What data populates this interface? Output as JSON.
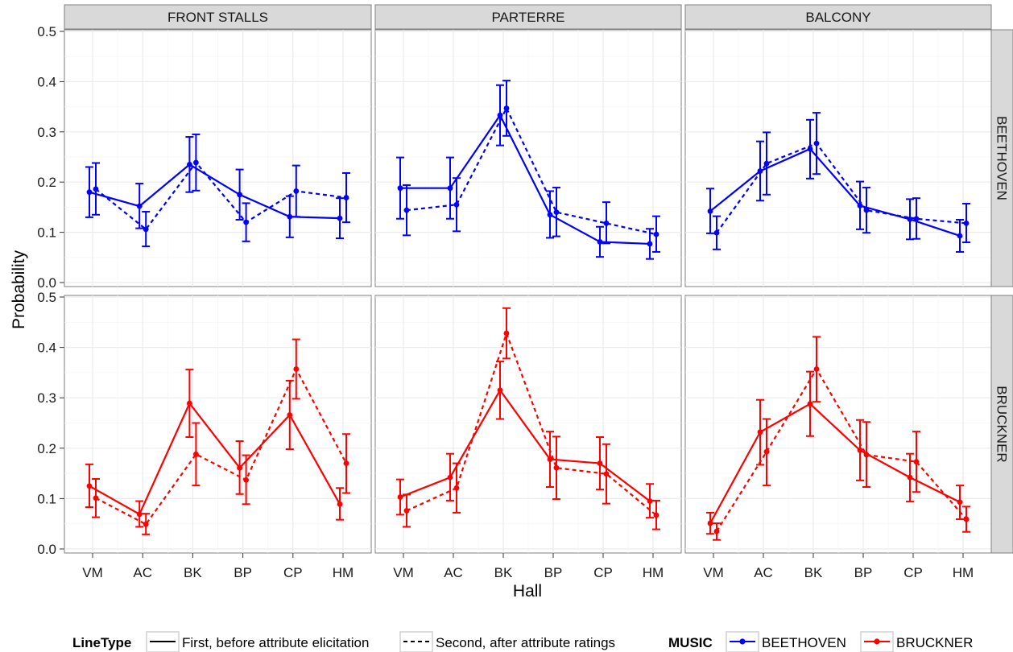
{
  "colors": {
    "beethoven": "#0000ff",
    "bruckner": "#ff0000",
    "panel_bg": "#ffffff",
    "grid": "#ebebeb",
    "strip_bg": "#d9d9d9",
    "strip_border": "#7f7f7f"
  },
  "chart_data": {
    "type": "line",
    "title": "",
    "xlabel": "Hall",
    "ylabel": "Probability",
    "categories": [
      "VM",
      "AC",
      "BK",
      "BP",
      "CP",
      "HM"
    ],
    "ylim": [
      0,
      0.5
    ],
    "yticks": [
      "0.0",
      "0.1",
      "0.2",
      "0.3",
      "0.4",
      "0.5"
    ],
    "grid": true,
    "column_facets": [
      "FRONT STALLS",
      "PARTERRE",
      "BALCONY"
    ],
    "row_facets": [
      "BEETHOVEN",
      "BRUCKNER"
    ],
    "legend": {
      "position": "bottom",
      "linetype_title": "LineType",
      "linetype_items": [
        {
          "label": "First, before attribute elicitation",
          "dash": "solid"
        },
        {
          "label": "Second, after attribute ratings",
          "dash": "dashed"
        }
      ],
      "music_title": "MUSIC",
      "music_items": [
        {
          "label": "BEETHOVEN",
          "color_key": "beethoven"
        },
        {
          "label": "BRUCKNER",
          "color_key": "bruckner"
        }
      ]
    },
    "panels": [
      {
        "col": "FRONT STALLS",
        "row": "BEETHOVEN",
        "series": [
          {
            "linetype": "first",
            "values": [
              0.18,
              0.152,
              0.235,
              0.175,
              0.131,
              0.128
            ],
            "lower": [
              0.13,
              0.108,
              0.18,
              0.125,
              0.09,
              0.088
            ],
            "upper": [
              0.23,
              0.197,
              0.29,
              0.225,
              0.172,
              0.168
            ]
          },
          {
            "linetype": "second",
            "values": [
              0.186,
              0.106,
              0.239,
              0.12,
              0.182,
              0.169
            ],
            "lower": [
              0.135,
              0.072,
              0.183,
              0.082,
              0.131,
              0.12
            ],
            "upper": [
              0.238,
              0.141,
              0.295,
              0.158,
              0.233,
              0.218
            ]
          }
        ]
      },
      {
        "col": "PARTERRE",
        "row": "BEETHOVEN",
        "series": [
          {
            "linetype": "first",
            "values": [
              0.188,
              0.188,
              0.333,
              0.135,
              0.081,
              0.077
            ],
            "lower": [
              0.127,
              0.127,
              0.273,
              0.089,
              0.051,
              0.047
            ],
            "upper": [
              0.249,
              0.249,
              0.393,
              0.182,
              0.111,
              0.107
            ]
          },
          {
            "linetype": "second",
            "values": [
              0.144,
              0.155,
              0.347,
              0.14,
              0.118,
              0.096
            ],
            "lower": [
              0.094,
              0.102,
              0.292,
              0.092,
              0.078,
              0.061
            ],
            "upper": [
              0.194,
              0.208,
              0.402,
              0.189,
              0.16,
              0.132
            ]
          }
        ]
      },
      {
        "col": "BALCONY",
        "row": "BEETHOVEN",
        "series": [
          {
            "linetype": "first",
            "values": [
              0.142,
              0.222,
              0.266,
              0.153,
              0.126,
              0.093
            ],
            "lower": [
              0.098,
              0.163,
              0.207,
              0.106,
              0.086,
              0.061
            ],
            "upper": [
              0.187,
              0.281,
              0.324,
              0.201,
              0.166,
              0.125
            ]
          },
          {
            "linetype": "second",
            "values": [
              0.099,
              0.237,
              0.277,
              0.144,
              0.127,
              0.118
            ],
            "lower": [
              0.066,
              0.175,
              0.216,
              0.099,
              0.087,
              0.08
            ],
            "upper": [
              0.132,
              0.299,
              0.338,
              0.189,
              0.168,
              0.157
            ]
          }
        ]
      },
      {
        "col": "FRONT STALLS",
        "row": "BRUCKNER",
        "series": [
          {
            "linetype": "first",
            "values": [
              0.125,
              0.069,
              0.289,
              0.161,
              0.266,
              0.089
            ],
            "lower": [
              0.083,
              0.044,
              0.222,
              0.109,
              0.198,
              0.058
            ],
            "upper": [
              0.168,
              0.095,
              0.356,
              0.214,
              0.334,
              0.121
            ]
          },
          {
            "linetype": "second",
            "values": [
              0.101,
              0.049,
              0.188,
              0.137,
              0.357,
              0.17
            ],
            "lower": [
              0.063,
              0.029,
              0.126,
              0.089,
              0.298,
              0.111
            ],
            "upper": [
              0.139,
              0.07,
              0.25,
              0.186,
              0.416,
              0.228
            ]
          }
        ]
      },
      {
        "col": "PARTERRE",
        "row": "BRUCKNER",
        "series": [
          {
            "linetype": "first",
            "values": [
              0.103,
              0.142,
              0.315,
              0.178,
              0.17,
              0.095
            ],
            "lower": [
              0.068,
              0.096,
              0.258,
              0.123,
              0.118,
              0.062
            ],
            "upper": [
              0.138,
              0.189,
              0.372,
              0.233,
              0.222,
              0.129
            ]
          },
          {
            "linetype": "second",
            "values": [
              0.076,
              0.121,
              0.428,
              0.161,
              0.149,
              0.067
            ],
            "lower": [
              0.044,
              0.072,
              0.378,
              0.099,
              0.09,
              0.039
            ],
            "upper": [
              0.108,
              0.17,
              0.478,
              0.223,
              0.208,
              0.096
            ]
          }
        ]
      },
      {
        "col": "BALCONY",
        "row": "BRUCKNER",
        "series": [
          {
            "linetype": "first",
            "values": [
              0.051,
              0.232,
              0.288,
              0.196,
              0.142,
              0.093
            ],
            "lower": [
              0.03,
              0.167,
              0.224,
              0.136,
              0.094,
              0.059
            ],
            "upper": [
              0.072,
              0.296,
              0.352,
              0.256,
              0.189,
              0.126
            ]
          },
          {
            "linetype": "second",
            "values": [
              0.035,
              0.193,
              0.357,
              0.187,
              0.173,
              0.059
            ],
            "lower": [
              0.018,
              0.126,
              0.292,
              0.123,
              0.113,
              0.034
            ],
            "upper": [
              0.051,
              0.258,
              0.421,
              0.252,
              0.233,
              0.084
            ]
          }
        ]
      }
    ]
  }
}
